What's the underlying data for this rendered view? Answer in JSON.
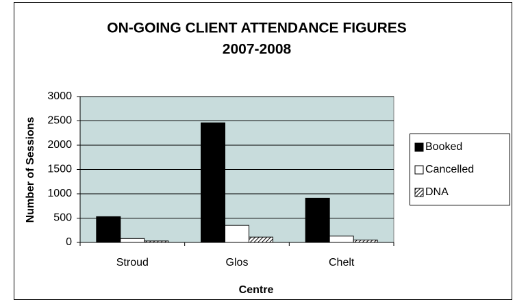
{
  "chart_data": {
    "type": "bar",
    "title": [
      "ON-GOING CLIENT ATTENDANCE FIGURES",
      "2007-2008"
    ],
    "x_label": "Centre",
    "y_label": "Number of Sessions",
    "categories": [
      "Stroud",
      "Glos",
      "Chelt"
    ],
    "series": [
      {
        "name": "Booked",
        "color": "#000000",
        "values": [
          530,
          2460,
          910
        ]
      },
      {
        "name": "Cancelled",
        "color": "#ffffff",
        "values": [
          80,
          350,
          130
        ]
      },
      {
        "name": "DNA",
        "color": "#ffffff",
        "pattern": "diagonal",
        "values": [
          30,
          110,
          50
        ]
      }
    ],
    "ylim": [
      0,
      3000
    ],
    "yticks": [
      0,
      500,
      1000,
      1500,
      2000,
      2500,
      3000
    ],
    "grid": true,
    "legend": "right",
    "plot_background": "#c8dcdc"
  }
}
